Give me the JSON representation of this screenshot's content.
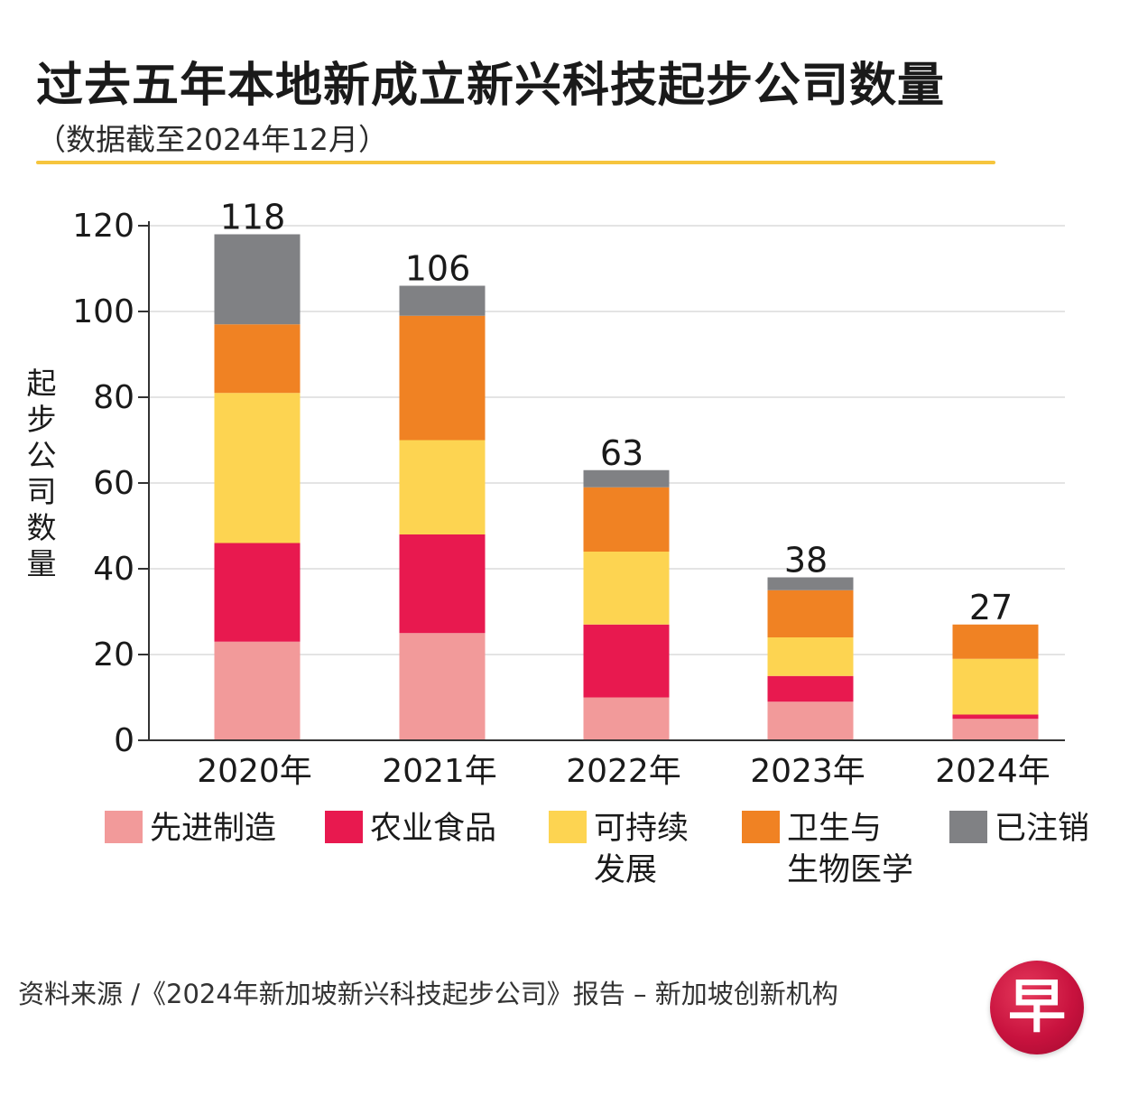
{
  "header": {
    "title": "过去五年本地新成立新兴科技起步公司数量",
    "subtitle": "（数据截至2024年12月）"
  },
  "y_axis_label": [
    "起",
    "步",
    "公",
    "司",
    "数",
    "量"
  ],
  "chart_data": {
    "type": "bar",
    "stacked": true,
    "title": "过去五年本地新成立新兴科技起步公司数量",
    "subtitle": "（数据截至2024年12月）",
    "xlabel": "",
    "ylabel": "起步公司数量",
    "ylim": [
      0,
      120
    ],
    "yticks": [
      0,
      20,
      40,
      60,
      80,
      100,
      120
    ],
    "grid": true,
    "categories": [
      "2020年",
      "2021年",
      "2022年",
      "2023年",
      "2024年"
    ],
    "totals": [
      118,
      106,
      63,
      38,
      27
    ],
    "series": [
      {
        "name": "先进制造",
        "color": "#f29a9a",
        "values": [
          23,
          25,
          10,
          9,
          5
        ]
      },
      {
        "name": "农业食品",
        "color": "#e8194f",
        "values": [
          23,
          23,
          17,
          6,
          1
        ]
      },
      {
        "name": "可持续发展",
        "color": "#fdd451",
        "values": [
          35,
          22,
          17,
          9,
          13
        ]
      },
      {
        "name": "卫生与生物医学",
        "color": "#f08223",
        "values": [
          16,
          29,
          15,
          11,
          8
        ]
      },
      {
        "name": "已注销",
        "color": "#808184",
        "values": [
          21,
          7,
          4,
          3,
          0
        ]
      }
    ]
  },
  "legend": [
    {
      "lines": [
        "先进制造"
      ],
      "color": "#f29a9a"
    },
    {
      "lines": [
        "农业食品"
      ],
      "color": "#e8194f"
    },
    {
      "lines": [
        "可持续",
        "发展"
      ],
      "color": "#fdd451"
    },
    {
      "lines": [
        "卫生与",
        "生物医学"
      ],
      "color": "#f08223"
    },
    {
      "lines": [
        "已注销"
      ],
      "color": "#808184"
    }
  ],
  "footer": {
    "source": "资料来源 /《2024年新加坡新兴科技起步公司》报告 – 新加坡创新机构",
    "logo_text": "早"
  }
}
